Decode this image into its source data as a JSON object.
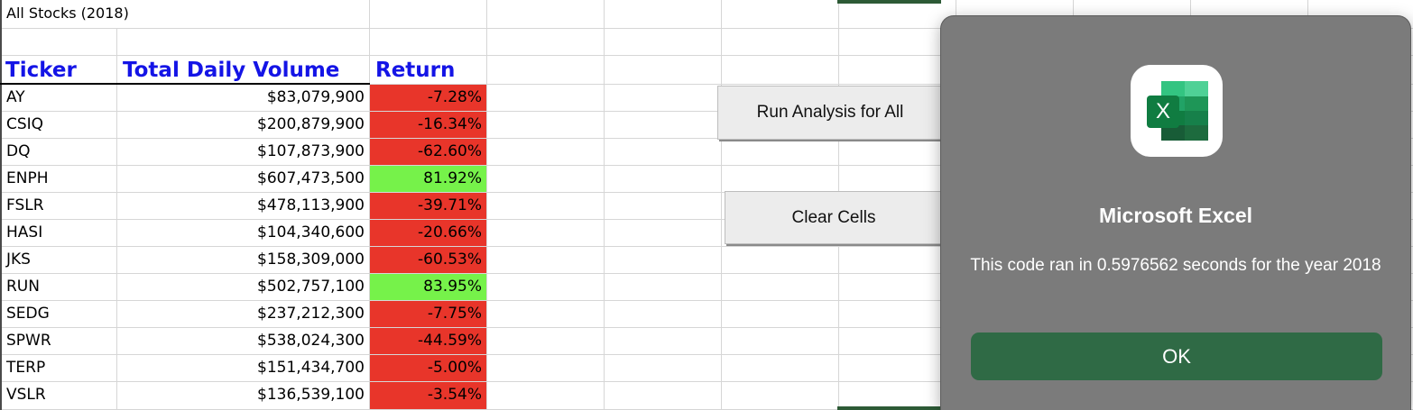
{
  "sheet": {
    "title": "All Stocks (2018)",
    "headers": {
      "ticker": "Ticker",
      "volume": "Total Daily Volume",
      "return": "Return"
    },
    "rows": [
      {
        "ticker": "AY",
        "volume": "$83,079,900",
        "return": "-7.28%",
        "positive": false
      },
      {
        "ticker": "CSIQ",
        "volume": "$200,879,900",
        "return": "-16.34%",
        "positive": false
      },
      {
        "ticker": "DQ",
        "volume": "$107,873,900",
        "return": "-62.60%",
        "positive": false
      },
      {
        "ticker": "ENPH",
        "volume": "$607,473,500",
        "return": "81.92%",
        "positive": true
      },
      {
        "ticker": "FSLR",
        "volume": "$478,113,900",
        "return": "-39.71%",
        "positive": false
      },
      {
        "ticker": "HASI",
        "volume": "$104,340,600",
        "return": "-20.66%",
        "positive": false
      },
      {
        "ticker": "JKS",
        "volume": "$158,309,000",
        "return": "-60.53%",
        "positive": false
      },
      {
        "ticker": "RUN",
        "volume": "$502,757,100",
        "return": "83.95%",
        "positive": true
      },
      {
        "ticker": "SEDG",
        "volume": "$237,212,300",
        "return": "-7.75%",
        "positive": false
      },
      {
        "ticker": "SPWR",
        "volume": "$538,024,300",
        "return": "-44.59%",
        "positive": false
      },
      {
        "ticker": "TERP",
        "volume": "$151,434,700",
        "return": "-5.00%",
        "positive": false
      },
      {
        "ticker": "VSLR",
        "volume": "$136,539,100",
        "return": "-3.54%",
        "positive": false
      }
    ]
  },
  "buttons": {
    "run_analysis": "Run Analysis for All",
    "clear_cells": "Clear Cells"
  },
  "dialog": {
    "icon": "excel-app-icon",
    "icon_letter": "X",
    "title": "Microsoft Excel",
    "message": "This code ran in 0.5976562 seconds for the year 2018",
    "ok_label": "OK"
  },
  "colors": {
    "header_text": "#1414e6",
    "negative_fill": "#e8352a",
    "positive_fill": "#76f24a",
    "dialog_bg": "#7b7b7b",
    "ok_button": "#2f6a45"
  }
}
